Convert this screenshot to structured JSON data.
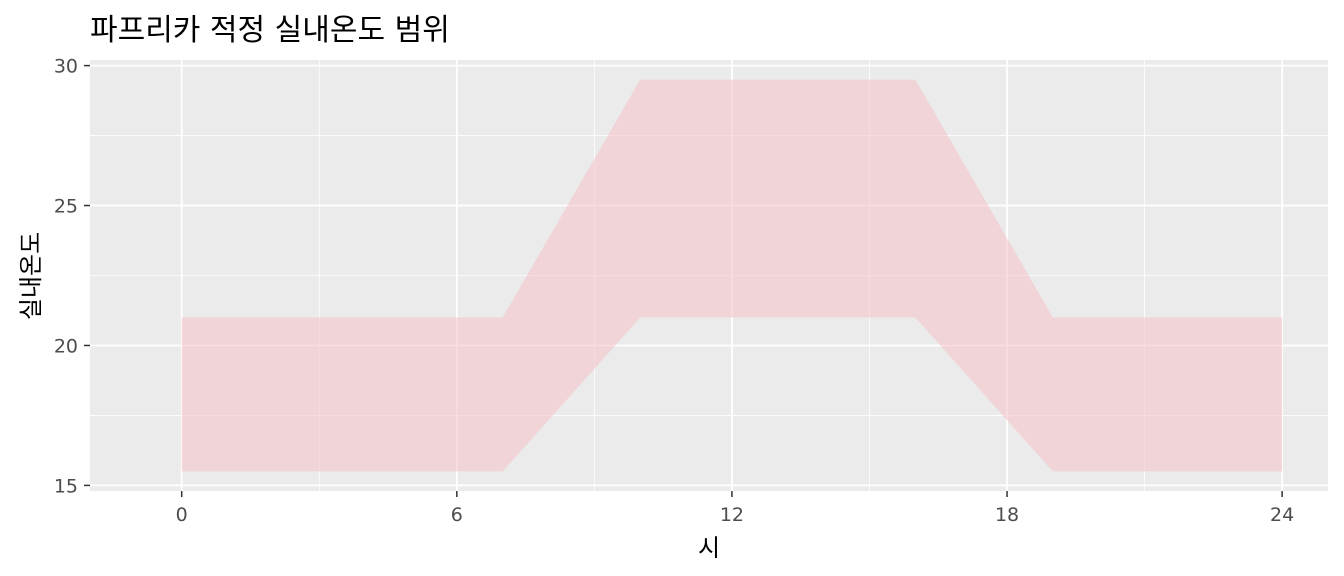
{
  "chart_data": {
    "type": "area",
    "title": "파프리카 적정 실내온도 범위",
    "xlabel": "시",
    "ylabel": "실내온도",
    "xlim": [
      -2,
      25
    ],
    "ylim": [
      14.8,
      30.2
    ],
    "x_ticks": [
      0,
      6,
      12,
      18,
      24
    ],
    "y_ticks": [
      15,
      20,
      25,
      30
    ],
    "grid": true,
    "legend": "none",
    "band": {
      "x": [
        0,
        7,
        10,
        16,
        19,
        24
      ],
      "lower": [
        15.5,
        15.5,
        21,
        21,
        15.5,
        15.5
      ],
      "upper": [
        21,
        21,
        29.5,
        29.5,
        21,
        21
      ]
    },
    "colors": {
      "panel": "#ebebeb",
      "grid": "#ffffff",
      "band_fill": "#f4c4c9",
      "band_opacity": 0.6,
      "tick": "#333333"
    }
  }
}
